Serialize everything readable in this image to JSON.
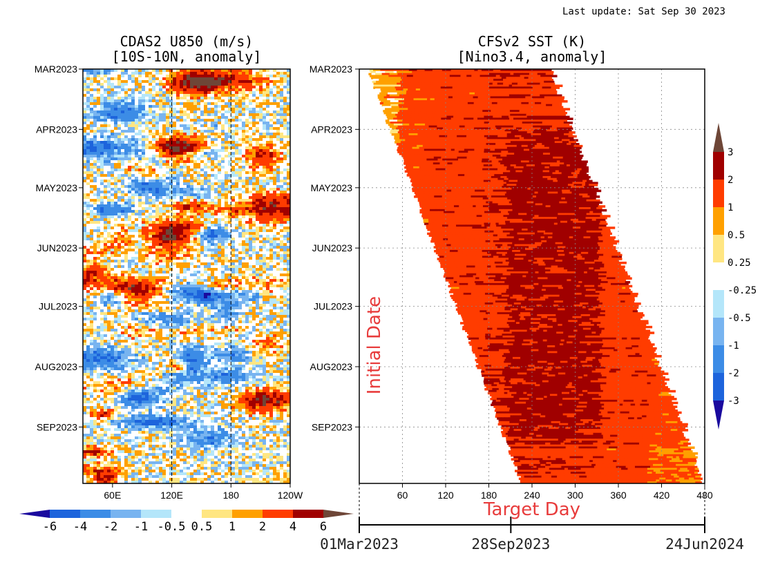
{
  "last_update": "Last update: Sat Sep 30 2023",
  "colors": {
    "neg": [
      "#1a0a9e",
      "#1d64dc",
      "#3c8ce6",
      "#78b4f0",
      "#b4e6fa"
    ],
    "pos": [
      "#ffe682",
      "#ffa000",
      "#ff3c00",
      "#a00000",
      "#6e4637"
    ],
    "zero": "#ffffff",
    "annotation_red": "#e83c3c"
  },
  "chart_data": [
    {
      "type": "heatmap",
      "title": "CDAS2 U850 (m/s)",
      "subtitle": "[10S-10N, anomaly]",
      "x_ticks": [
        "60E",
        "120E",
        "180",
        "120W"
      ],
      "x_tick_values": [
        60,
        120,
        180,
        240
      ],
      "xlim": [
        30,
        240
      ],
      "y_ticks": [
        "MAR2023",
        "APR2023",
        "MAY2023",
        "JUN2023",
        "JUL2023",
        "AUG2023",
        "SEP2023"
      ],
      "y_tick_days": [
        0,
        31,
        61,
        92,
        122,
        153,
        184
      ],
      "ylim_days": [
        0,
        213
      ],
      "reference_lines_x": [
        120,
        180
      ],
      "colorbar": {
        "orientation": "horizontal",
        "labels": [
          "-6",
          "-4",
          "-2",
          "-1",
          "-0.5",
          "0.5",
          "1",
          "2",
          "4",
          "6"
        ],
        "levels": [
          -6,
          -4,
          -2,
          -1,
          -0.5,
          0.5,
          1,
          2,
          4,
          6
        ]
      },
      "notable_features": [
        {
          "date": "early Mar",
          "lon": "140E-175E",
          "anomaly": "> 4"
        },
        {
          "date": "early Apr",
          "lon": "100E-140E",
          "anomaly": "> 6"
        },
        {
          "date": "mid May",
          "lon": "100E-165E",
          "anomaly": "> 4"
        },
        {
          "date": "Aug-Sep",
          "lon": "180-120W",
          "anomaly": "> 4"
        }
      ]
    },
    {
      "type": "heatmap",
      "title": "CFSv2 SST (K)",
      "subtitle": "[Nino3.4, anomaly]",
      "xlabel": "Target Day",
      "ylabel": "Initial Date",
      "x_ticks": [
        "60",
        "120",
        "180",
        "240",
        "300",
        "360",
        "420",
        "480"
      ],
      "x_tick_values": [
        60,
        120,
        180,
        240,
        300,
        360,
        420,
        480
      ],
      "xlim": [
        0,
        480
      ],
      "y_ticks": [
        "MAR2023",
        "APR2023",
        "MAY2023",
        "JUN2023",
        "JUL2023",
        "AUG2023",
        "SEP2023"
      ],
      "y_tick_days": [
        0,
        31,
        61,
        92,
        122,
        153,
        184
      ],
      "ylim_days": [
        0,
        213
      ],
      "grid": true,
      "date_axis": {
        "labels": [
          "01Mar2023",
          "28Sep2023",
          "24Jun2024"
        ],
        "target_days": [
          0,
          211,
          481
        ]
      },
      "colorbar": {
        "orientation": "vertical",
        "labels": [
          "-3",
          "-2",
          "-1",
          "-0.5",
          "-0.25",
          "0.25",
          "0.5",
          "1",
          "2",
          "3"
        ],
        "levels": [
          -3,
          -2,
          -1,
          -0.5,
          -0.25,
          0.25,
          0.5,
          1,
          2,
          3
        ]
      },
      "valid_region": {
        "description": "forecast band starting at initial date, length ~262 days",
        "lead_start_day": 0,
        "lead_end_day": 262
      },
      "anomaly_by_target_day": [
        {
          "target_day_range": [
            0,
            30
          ],
          "anomaly": "0.25-0.5"
        },
        {
          "target_day_range": [
            30,
            60
          ],
          "anomaly": "0.5-1"
        },
        {
          "target_day_range": [
            60,
            180
          ],
          "anomaly": "1-2"
        },
        {
          "target_day_range": [
            180,
            330
          ],
          "anomaly": "2-3"
        },
        {
          "target_day_range": [
            330,
            480
          ],
          "anomaly": "1-2"
        }
      ]
    }
  ]
}
